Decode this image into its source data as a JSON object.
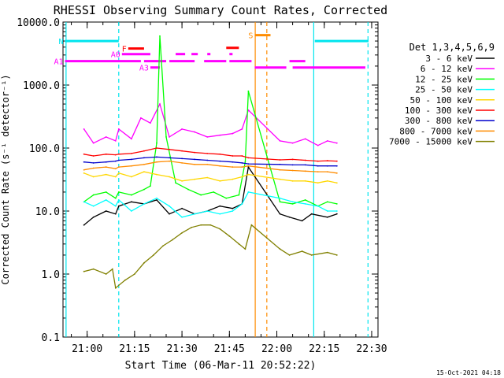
{
  "chart_data": {
    "type": "line",
    "title": "RHESSI Observing Summary Count Rates, Corrected",
    "xlabel": "Start Time (06-Mar-11 20:52:22)",
    "ylabel": "Corrected Count Rate (s⁻¹ detector⁻¹)",
    "yscale": "log",
    "ylim": [
      0.1,
      10000
    ],
    "xlim": [
      "20:52:22",
      "22:32:00"
    ],
    "x_ticks": [
      "21:00",
      "21:15",
      "21:30",
      "21:45",
      "22:00",
      "22:15",
      "22:30"
    ],
    "y_ticks": [
      "0.1",
      "1.0",
      "10.0",
      "100.0",
      "1000.0",
      "10000.0"
    ],
    "legend_title": "Det 1,3,4,5,6,9",
    "legend_placement": "right",
    "series": [
      {
        "name": "3 - 6 keV",
        "color": "#000000",
        "points": [
          [
            "20:59",
            6
          ],
          [
            "21:02",
            8
          ],
          [
            "21:06",
            10
          ],
          [
            "21:09",
            9
          ],
          [
            "21:10",
            12
          ],
          [
            "21:14",
            14
          ],
          [
            "21:18",
            13
          ],
          [
            "21:22",
            15
          ],
          [
            "21:26",
            9
          ],
          [
            "21:30",
            11
          ],
          [
            "21:34",
            9
          ],
          [
            "21:38",
            10
          ],
          [
            "21:42",
            12
          ],
          [
            "21:46",
            11
          ],
          [
            "21:49",
            13
          ],
          [
            "21:51",
            50
          ],
          [
            "22:01",
            9
          ],
          [
            "22:04",
            8
          ],
          [
            "22:08",
            7
          ],
          [
            "22:11",
            9
          ],
          [
            "22:16",
            8
          ],
          [
            "22:19",
            9
          ]
        ]
      },
      {
        "name": "6 - 12 keV",
        "color": "#ff00ff",
        "points": [
          [
            "20:59",
            200
          ],
          [
            "21:02",
            120
          ],
          [
            "21:06",
            150
          ],
          [
            "21:09",
            130
          ],
          [
            "21:10",
            200
          ],
          [
            "21:14",
            140
          ],
          [
            "21:17",
            300
          ],
          [
            "21:20",
            250
          ],
          [
            "21:23",
            500
          ],
          [
            "21:26",
            150
          ],
          [
            "21:30",
            200
          ],
          [
            "21:34",
            180
          ],
          [
            "21:38",
            150
          ],
          [
            "21:42",
            160
          ],
          [
            "21:46",
            170
          ],
          [
            "21:49",
            200
          ],
          [
            "21:51",
            400
          ],
          [
            "22:01",
            130
          ],
          [
            "22:05",
            120
          ],
          [
            "22:09",
            140
          ],
          [
            "22:13",
            110
          ],
          [
            "22:16",
            130
          ],
          [
            "22:19",
            120
          ]
        ]
      },
      {
        "name": "12 - 25 keV",
        "color": "#00ff00",
        "points": [
          [
            "20:59",
            14
          ],
          [
            "21:02",
            18
          ],
          [
            "21:06",
            20
          ],
          [
            "21:09",
            16
          ],
          [
            "21:10",
            20
          ],
          [
            "21:14",
            18
          ],
          [
            "21:18",
            22
          ],
          [
            "21:20",
            25
          ],
          [
            "21:22",
            120
          ],
          [
            "21:23",
            6000
          ],
          [
            "21:25",
            150
          ],
          [
            "21:28",
            28
          ],
          [
            "21:32",
            22
          ],
          [
            "21:36",
            18
          ],
          [
            "21:40",
            20
          ],
          [
            "21:44",
            16
          ],
          [
            "21:48",
            18
          ],
          [
            "21:50",
            60
          ],
          [
            "21:51",
            800
          ],
          [
            "22:01",
            14
          ],
          [
            "22:05",
            13
          ],
          [
            "22:09",
            15
          ],
          [
            "22:13",
            12
          ],
          [
            "22:16",
            14
          ],
          [
            "22:19",
            13
          ]
        ]
      },
      {
        "name": "25 - 50 keV",
        "color": "#00ffff",
        "points": [
          [
            "20:59",
            14
          ],
          [
            "21:02",
            12
          ],
          [
            "21:06",
            15
          ],
          [
            "21:09",
            12
          ],
          [
            "21:10",
            15
          ],
          [
            "21:14",
            10
          ],
          [
            "21:18",
            13
          ],
          [
            "21:22",
            16
          ],
          [
            "21:26",
            12
          ],
          [
            "21:30",
            8
          ],
          [
            "21:34",
            9
          ],
          [
            "21:38",
            10
          ],
          [
            "21:42",
            9
          ],
          [
            "21:46",
            10
          ],
          [
            "21:49",
            13
          ],
          [
            "21:51",
            20
          ],
          [
            "22:01",
            16
          ],
          [
            "22:05",
            14
          ],
          [
            "22:09",
            13
          ],
          [
            "22:13",
            12
          ],
          [
            "22:16",
            10
          ],
          [
            "22:19",
            10
          ]
        ]
      },
      {
        "name": "50 - 100 keV",
        "color": "#ffd700",
        "points": [
          [
            "20:59",
            40
          ],
          [
            "21:02",
            35
          ],
          [
            "21:06",
            38
          ],
          [
            "21:09",
            35
          ],
          [
            "21:10",
            40
          ],
          [
            "21:14",
            35
          ],
          [
            "21:18",
            42
          ],
          [
            "21:22",
            38
          ],
          [
            "21:26",
            35
          ],
          [
            "21:30",
            30
          ],
          [
            "21:34",
            32
          ],
          [
            "21:38",
            34
          ],
          [
            "21:42",
            30
          ],
          [
            "21:46",
            32
          ],
          [
            "21:49",
            35
          ],
          [
            "21:51",
            38
          ],
          [
            "22:01",
            32
          ],
          [
            "22:05",
            30
          ],
          [
            "22:09",
            30
          ],
          [
            "22:13",
            28
          ],
          [
            "22:16",
            30
          ],
          [
            "22:19",
            28
          ]
        ]
      },
      {
        "name": "100 - 300 keV",
        "color": "#ff0000",
        "points": [
          [
            "20:59",
            80
          ],
          [
            "21:02",
            75
          ],
          [
            "21:06",
            80
          ],
          [
            "21:09",
            78
          ],
          [
            "21:10",
            80
          ],
          [
            "21:14",
            82
          ],
          [
            "21:18",
            90
          ],
          [
            "21:22",
            100
          ],
          [
            "21:26",
            95
          ],
          [
            "21:30",
            90
          ],
          [
            "21:34",
            85
          ],
          [
            "21:38",
            82
          ],
          [
            "21:42",
            80
          ],
          [
            "21:46",
            75
          ],
          [
            "21:49",
            75
          ],
          [
            "21:51",
            70
          ],
          [
            "22:01",
            65
          ],
          [
            "22:05",
            66
          ],
          [
            "22:09",
            64
          ],
          [
            "22:13",
            62
          ],
          [
            "22:16",
            63
          ],
          [
            "22:19",
            62
          ]
        ]
      },
      {
        "name": "300 - 800 keV",
        "color": "#0000cc",
        "points": [
          [
            "20:59",
            60
          ],
          [
            "21:02",
            58
          ],
          [
            "21:06",
            60
          ],
          [
            "21:09",
            62
          ],
          [
            "21:10",
            64
          ],
          [
            "21:14",
            66
          ],
          [
            "21:18",
            70
          ],
          [
            "21:22",
            72
          ],
          [
            "21:26",
            70
          ],
          [
            "21:30",
            68
          ],
          [
            "21:34",
            66
          ],
          [
            "21:38",
            64
          ],
          [
            "21:42",
            62
          ],
          [
            "21:46",
            60
          ],
          [
            "21:49",
            58
          ],
          [
            "21:51",
            56
          ],
          [
            "22:01",
            55
          ],
          [
            "22:05",
            54
          ],
          [
            "22:09",
            54
          ],
          [
            "22:13",
            52
          ],
          [
            "22:16",
            52
          ],
          [
            "22:19",
            52
          ]
        ]
      },
      {
        "name": "800 - 7000 keV",
        "color": "#ff8c00",
        "points": [
          [
            "20:59",
            45
          ],
          [
            "21:02",
            48
          ],
          [
            "21:06",
            50
          ],
          [
            "21:09",
            47
          ],
          [
            "21:10",
            50
          ],
          [
            "21:14",
            52
          ],
          [
            "21:18",
            55
          ],
          [
            "21:22",
            60
          ],
          [
            "21:26",
            62
          ],
          [
            "21:30",
            58
          ],
          [
            "21:34",
            55
          ],
          [
            "21:38",
            55
          ],
          [
            "21:42",
            52
          ],
          [
            "21:46",
            50
          ],
          [
            "21:49",
            50
          ],
          [
            "21:51",
            52
          ],
          [
            "22:01",
            45
          ],
          [
            "22:05",
            44
          ],
          [
            "22:09",
            43
          ],
          [
            "22:13",
            42
          ],
          [
            "22:16",
            42
          ],
          [
            "22:19",
            40
          ]
        ]
      },
      {
        "name": "7000 - 15000 keV",
        "color": "#808000",
        "points": [
          [
            "20:59",
            1.1
          ],
          [
            "21:02",
            1.2
          ],
          [
            "21:06",
            1.0
          ],
          [
            "21:08",
            1.2
          ],
          [
            "21:09",
            0.6
          ],
          [
            "21:12",
            0.8
          ],
          [
            "21:15",
            1.0
          ],
          [
            "21:18",
            1.5
          ],
          [
            "21:21",
            2.0
          ],
          [
            "21:24",
            2.8
          ],
          [
            "21:27",
            3.5
          ],
          [
            "21:30",
            4.5
          ],
          [
            "21:33",
            5.5
          ],
          [
            "21:36",
            6.0
          ],
          [
            "21:39",
            6.0
          ],
          [
            "21:42",
            5.2
          ],
          [
            "21:45",
            4.0
          ],
          [
            "21:48",
            3.0
          ],
          [
            "21:50",
            2.5
          ],
          [
            "21:52",
            6
          ],
          [
            "22:01",
            2.5
          ],
          [
            "22:04",
            2.0
          ],
          [
            "22:08",
            2.3
          ],
          [
            "22:11",
            2.0
          ],
          [
            "22:16",
            2.2
          ],
          [
            "22:19",
            2.0
          ]
        ]
      }
    ],
    "verticals": [
      {
        "time": "20:53:20",
        "color": "#00e5ee",
        "dash": false
      },
      {
        "time": "21:10:00",
        "color": "#00e5ee",
        "dash": true
      },
      {
        "time": "21:53:10",
        "color": "#ff8c00",
        "dash": false
      },
      {
        "time": "21:56:50",
        "color": "#ff8c00",
        "dash": true
      },
      {
        "time": "22:11:40",
        "color": "#00e5ee",
        "dash": false
      },
      {
        "time": "22:28:50",
        "color": "#00e5ee",
        "dash": true
      }
    ],
    "flag_bars": [
      {
        "label": "N",
        "color": "#00e5ee",
        "y": 5000,
        "segments": [
          [
            "20:53",
            "21:10"
          ],
          [
            "22:12",
            "22:29"
          ]
        ]
      },
      {
        "label": "F",
        "color": "#ff0000",
        "y": 3800,
        "segments": [
          [
            "21:13",
            "21:18"
          ]
        ]
      },
      {
        "label": "A0",
        "color": "#ff00ff",
        "y": 3100,
        "segments": [
          [
            "21:11",
            "21:20"
          ]
        ]
      },
      {
        "label": "A1",
        "color": "#ff00ff",
        "y": 2400,
        "segments": [
          [
            "20:53",
            "21:17"
          ],
          [
            "21:18",
            "21:25"
          ],
          [
            "21:26",
            "21:34"
          ],
          [
            "21:37",
            "21:44"
          ],
          [
            "21:45",
            "21:52"
          ]
        ]
      },
      {
        "label": "A3",
        "color": "#ff00ff",
        "y": 1900,
        "segments": [
          [
            "21:20",
            "21:23"
          ]
        ]
      },
      {
        "label": "",
        "color": "#ff00ff",
        "y": 1900,
        "segments": [
          [
            "21:53",
            "22:03"
          ],
          [
            "22:05",
            "22:28"
          ]
        ]
      },
      {
        "label": "",
        "color": "#ff00ff",
        "y": 3100,
        "segments": [
          [
            "21:28",
            "21:31"
          ],
          [
            "21:33",
            "21:35"
          ],
          [
            "21:38",
            "21:39"
          ],
          [
            "21:45",
            "21:46"
          ]
        ]
      },
      {
        "label": "",
        "color": "#ff0000",
        "y": 3900,
        "segments": [
          [
            "21:44",
            "21:48"
          ]
        ]
      },
      {
        "label": "",
        "color": "#ff00ff",
        "y": 2400,
        "segments": [
          [
            "22:04",
            "22:09"
          ]
        ]
      },
      {
        "label": "S",
        "color": "#ff8c00",
        "y": 6200,
        "segments": [
          [
            "21:53",
            "21:58"
          ]
        ]
      }
    ]
  },
  "footer": {
    "date_stamp": "15-Oct-2021 04:18"
  }
}
